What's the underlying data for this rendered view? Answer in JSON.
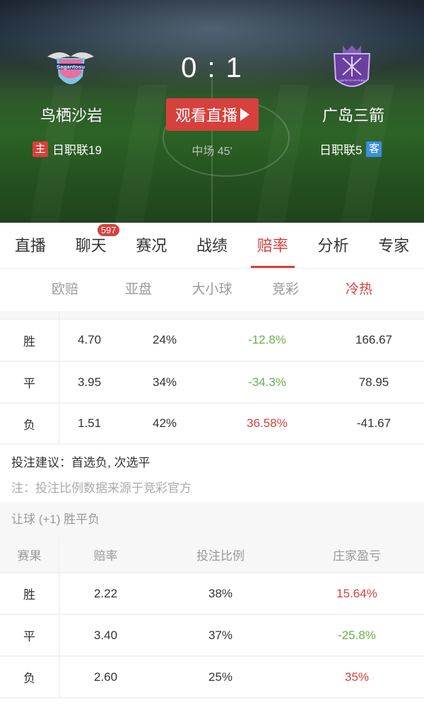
{
  "match": {
    "home_team": "鸟栖沙岩",
    "away_team": "广岛三箭",
    "score": "0 : 1",
    "status": "中场  45'",
    "watch_live": "观看直播",
    "home_tag": "主",
    "away_tag": "客",
    "home_rank": "日职联19",
    "away_rank": "日职联5",
    "home_logo_text": "Sagantosu",
    "away_logo_text": "SANFRECCE HIROSHIMA",
    "home_tag_color": "#d6413d",
    "away_tag_color": "#3b8fe0"
  },
  "tabs": [
    {
      "label": "直播"
    },
    {
      "label": "聊天",
      "badge": "597"
    },
    {
      "label": "赛况"
    },
    {
      "label": "战绩"
    },
    {
      "label": "赔率",
      "active": true
    },
    {
      "label": "分析"
    },
    {
      "label": "专家"
    }
  ],
  "subtabs": [
    {
      "label": "欧赔"
    },
    {
      "label": "亚盘"
    },
    {
      "label": "大小球"
    },
    {
      "label": "竞彩"
    },
    {
      "label": "冷热",
      "active": true
    }
  ],
  "table1": {
    "rows": [
      {
        "result": "胜",
        "odds": "4.70",
        "ratio": "24%",
        "change": "-12.8%",
        "change_trend": "down",
        "profit": "166.67"
      },
      {
        "result": "平",
        "odds": "3.95",
        "ratio": "34%",
        "change": "-34.3%",
        "change_trend": "down",
        "profit": "78.95"
      },
      {
        "result": "负",
        "odds": "1.51",
        "ratio": "42%",
        "change": "36.58%",
        "change_trend": "up",
        "profit": "-41.67"
      }
    ]
  },
  "advice": "投注建议：首选负, 次选平",
  "note": "注：投注比例数据来源于竞彩官方",
  "handicap": {
    "title": "让球 (+1) 胜平负",
    "headers": [
      "赛果",
      "赔率",
      "投注比例",
      "庄家盈亏"
    ],
    "rows": [
      {
        "result": "胜",
        "odds": "2.22",
        "ratio": "38%",
        "profit": "15.64%",
        "trend": "up"
      },
      {
        "result": "平",
        "odds": "3.40",
        "ratio": "37%",
        "profit": "-25.8%",
        "trend": "down"
      },
      {
        "result": "负",
        "odds": "2.60",
        "ratio": "25%",
        "profit": "35%",
        "trend": "up"
      }
    ]
  },
  "colors": {
    "accent": "#d6413d",
    "positive": "#d6413d",
    "negative": "#6ab04c"
  }
}
